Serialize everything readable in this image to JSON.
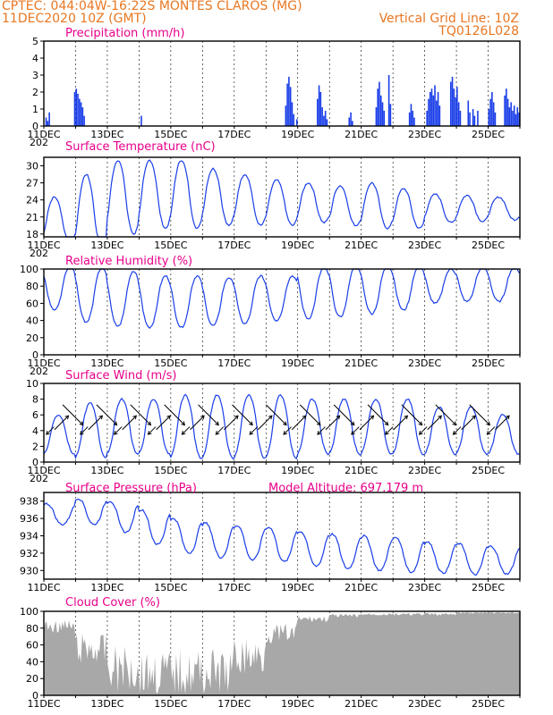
{
  "header": {
    "left_line1": "CPTEC:   044:04W-16:22S   MONTES CLAROS (MG)",
    "left_line2": "11DEC2020 10Z (GMT)",
    "right_line2": "Vertical Grid Line: 10Z",
    "right_line3": "TQ0126L028"
  },
  "x_tick_labels": [
    "11DEC",
    "13DEC",
    "15DEC",
    "17DEC",
    "19DEC",
    "21DEC",
    "23DEC",
    "25DEC"
  ],
  "x_year_fragment": "202",
  "colors": {
    "title": "#e8008a",
    "header": "#e87722",
    "series": "#1a3ee8",
    "cloud": "#a8a8a8",
    "wind_arrow": "#000000"
  },
  "chart_data": [
    {
      "type": "bar",
      "title": "Precipitation (mm/h)",
      "ylim": [
        0,
        5
      ],
      "yticks": [
        0,
        1,
        2,
        3,
        4,
        5
      ],
      "xlim_days": [
        0,
        15
      ],
      "values": [
        {
          "day": 0.05,
          "v": 0.5
        },
        {
          "day": 0.1,
          "v": 0.3
        },
        {
          "day": 0.15,
          "v": 0.8
        },
        {
          "day": 0.95,
          "v": 2.0
        },
        {
          "day": 1.0,
          "v": 2.2
        },
        {
          "day": 1.05,
          "v": 1.9
        },
        {
          "day": 1.1,
          "v": 1.6
        },
        {
          "day": 1.15,
          "v": 1.4
        },
        {
          "day": 1.2,
          "v": 1.1
        },
        {
          "day": 1.25,
          "v": 0.6
        },
        {
          "day": 3.05,
          "v": 0.6
        },
        {
          "day": 7.6,
          "v": 1.2
        },
        {
          "day": 7.65,
          "v": 2.5
        },
        {
          "day": 7.7,
          "v": 2.9
        },
        {
          "day": 7.75,
          "v": 2.3
        },
        {
          "day": 7.8,
          "v": 1.4
        },
        {
          "day": 7.85,
          "v": 0.7
        },
        {
          "day": 7.95,
          "v": 0.4
        },
        {
          "day": 8.6,
          "v": 1.6
        },
        {
          "day": 8.65,
          "v": 2.4
        },
        {
          "day": 8.7,
          "v": 2.0
        },
        {
          "day": 8.75,
          "v": 1.1
        },
        {
          "day": 8.8,
          "v": 0.6
        },
        {
          "day": 8.85,
          "v": 0.9
        },
        {
          "day": 8.9,
          "v": 0.4
        },
        {
          "day": 9.6,
          "v": 0.5
        },
        {
          "day": 9.65,
          "v": 0.8
        },
        {
          "day": 9.7,
          "v": 0.3
        },
        {
          "day": 10.45,
          "v": 1.1
        },
        {
          "day": 10.5,
          "v": 2.2
        },
        {
          "day": 10.55,
          "v": 2.6
        },
        {
          "day": 10.6,
          "v": 1.8
        },
        {
          "day": 10.65,
          "v": 1.4
        },
        {
          "day": 10.7,
          "v": 0.9
        },
        {
          "day": 10.85,
          "v": 3.0
        },
        {
          "day": 10.9,
          "v": 1.3
        },
        {
          "day": 11.5,
          "v": 0.8
        },
        {
          "day": 11.55,
          "v": 1.3
        },
        {
          "day": 11.6,
          "v": 0.9
        },
        {
          "day": 11.65,
          "v": 0.5
        },
        {
          "day": 12.05,
          "v": 0.9
        },
        {
          "day": 12.1,
          "v": 1.6
        },
        {
          "day": 12.15,
          "v": 2.0
        },
        {
          "day": 12.2,
          "v": 2.2
        },
        {
          "day": 12.25,
          "v": 1.8
        },
        {
          "day": 12.3,
          "v": 2.4
        },
        {
          "day": 12.35,
          "v": 1.5
        },
        {
          "day": 12.4,
          "v": 2.0
        },
        {
          "day": 12.45,
          "v": 1.2
        },
        {
          "day": 12.8,
          "v": 2.6
        },
        {
          "day": 12.85,
          "v": 2.9
        },
        {
          "day": 12.9,
          "v": 2.2
        },
        {
          "day": 12.95,
          "v": 1.7
        },
        {
          "day": 13.0,
          "v": 2.3
        },
        {
          "day": 13.05,
          "v": 1.4
        },
        {
          "day": 13.1,
          "v": 0.9
        },
        {
          "day": 13.35,
          "v": 1.5
        },
        {
          "day": 13.4,
          "v": 0.8
        },
        {
          "day": 13.5,
          "v": 1.0
        },
        {
          "day": 13.55,
          "v": 0.6
        },
        {
          "day": 13.65,
          "v": 0.9
        },
        {
          "day": 14.0,
          "v": 1.0
        },
        {
          "day": 14.05,
          "v": 1.6
        },
        {
          "day": 14.1,
          "v": 2.0
        },
        {
          "day": 14.15,
          "v": 1.4
        },
        {
          "day": 14.2,
          "v": 0.8
        },
        {
          "day": 14.5,
          "v": 1.8
        },
        {
          "day": 14.55,
          "v": 2.2
        },
        {
          "day": 14.6,
          "v": 1.6
        },
        {
          "day": 14.65,
          "v": 1.1
        },
        {
          "day": 14.7,
          "v": 1.4
        },
        {
          "day": 14.75,
          "v": 0.9
        },
        {
          "day": 14.8,
          "v": 1.2
        },
        {
          "day": 14.85,
          "v": 0.7
        },
        {
          "day": 14.9,
          "v": 1.1
        },
        {
          "day": 14.95,
          "v": 0.8
        }
      ]
    },
    {
      "type": "line",
      "title": "Surface Temperature (nC)",
      "ylim": [
        17.5,
        31.5
      ],
      "yticks": [
        18,
        21,
        24,
        27,
        30
      ],
      "mean": [
        20.5,
        22,
        24.5,
        25,
        25,
        24.5,
        24,
        23.5,
        23.5,
        23,
        23,
        22.5,
        22.5,
        22.5,
        22.5,
        22
      ],
      "amplitude": [
        4,
        6.5,
        6.5,
        6,
        6,
        5,
        4.5,
        4,
        3.5,
        3.5,
        4,
        3.5,
        2.5,
        2.3,
        2,
        1.8
      ],
      "peak_hour_utc": 18
    },
    {
      "type": "line",
      "title": "Relative Humidity (%)",
      "ylim": [
        0,
        100
      ],
      "yticks": [
        0,
        20,
        40,
        60,
        80,
        100
      ],
      "mean": [
        78,
        70,
        65,
        62,
        62,
        62,
        64,
        66,
        72,
        74,
        76,
        78,
        80,
        82,
        82,
        84
      ],
      "amplitude": [
        25,
        32,
        32,
        30,
        30,
        28,
        28,
        26,
        30,
        30,
        28,
        26,
        20,
        20,
        20,
        18
      ],
      "peak_hour_utc": 6
    },
    {
      "type": "line",
      "title": "Surface Wind (m/s)",
      "ylim": [
        0,
        10
      ],
      "yticks": [
        0,
        2,
        4,
        6,
        8,
        10
      ],
      "mean": [
        3.5,
        4,
        4.5,
        4.5,
        4.5,
        4.5,
        4.5,
        4.5,
        4.5,
        4.5,
        4.5,
        4.5,
        4,
        4,
        3.5,
        3.5
      ],
      "amplitude": [
        2.5,
        3.5,
        3.5,
        3.5,
        4,
        4,
        4,
        4,
        3.5,
        3.5,
        3.5,
        3.5,
        3,
        3,
        2.5,
        2.5
      ],
      "peak_hour_utc": 21,
      "arrows_directions_deg": [
        225,
        45,
        315,
        225,
        45,
        315,
        225,
        45,
        315,
        225,
        45,
        315,
        225,
        45,
        315,
        225,
        45,
        315,
        225,
        45,
        315,
        225,
        45,
        315,
        225,
        45,
        315,
        225,
        45,
        315,
        225,
        45,
        315,
        225,
        45,
        315,
        225,
        45,
        315,
        225,
        45
      ]
    },
    {
      "type": "line",
      "title": "Surface Pressure (hPa)",
      "annotation": "Model Altitude: 697.179 m",
      "ylim": [
        929,
        939
      ],
      "yticks": [
        930,
        932,
        934,
        936,
        938
      ],
      "mean": [
        936.5,
        936.8,
        936.2,
        935,
        934,
        933.5,
        933.2,
        933,
        932.5,
        932.2,
        932,
        931.8,
        931.5,
        931.3,
        931.2,
        931.2
      ],
      "amplitude": [
        1.2,
        1.5,
        1.8,
        2,
        2,
        2,
        2,
        2,
        2,
        2,
        2,
        2,
        1.8,
        1.8,
        1.6,
        1.6
      ],
      "peak_hour_utc": 12
    },
    {
      "type": "area",
      "title": "Cloud Cover (%)",
      "ylim": [
        0,
        100
      ],
      "yticks": [
        0,
        20,
        40,
        60,
        80,
        100
      ],
      "mean": [
        90,
        75,
        60,
        55,
        55,
        55,
        70,
        85,
        95,
        97,
        98,
        98,
        98,
        99,
        99,
        99
      ],
      "variability": [
        10,
        25,
        35,
        35,
        35,
        35,
        30,
        15,
        5,
        3,
        2,
        2,
        2,
        1,
        1,
        1
      ]
    }
  ]
}
